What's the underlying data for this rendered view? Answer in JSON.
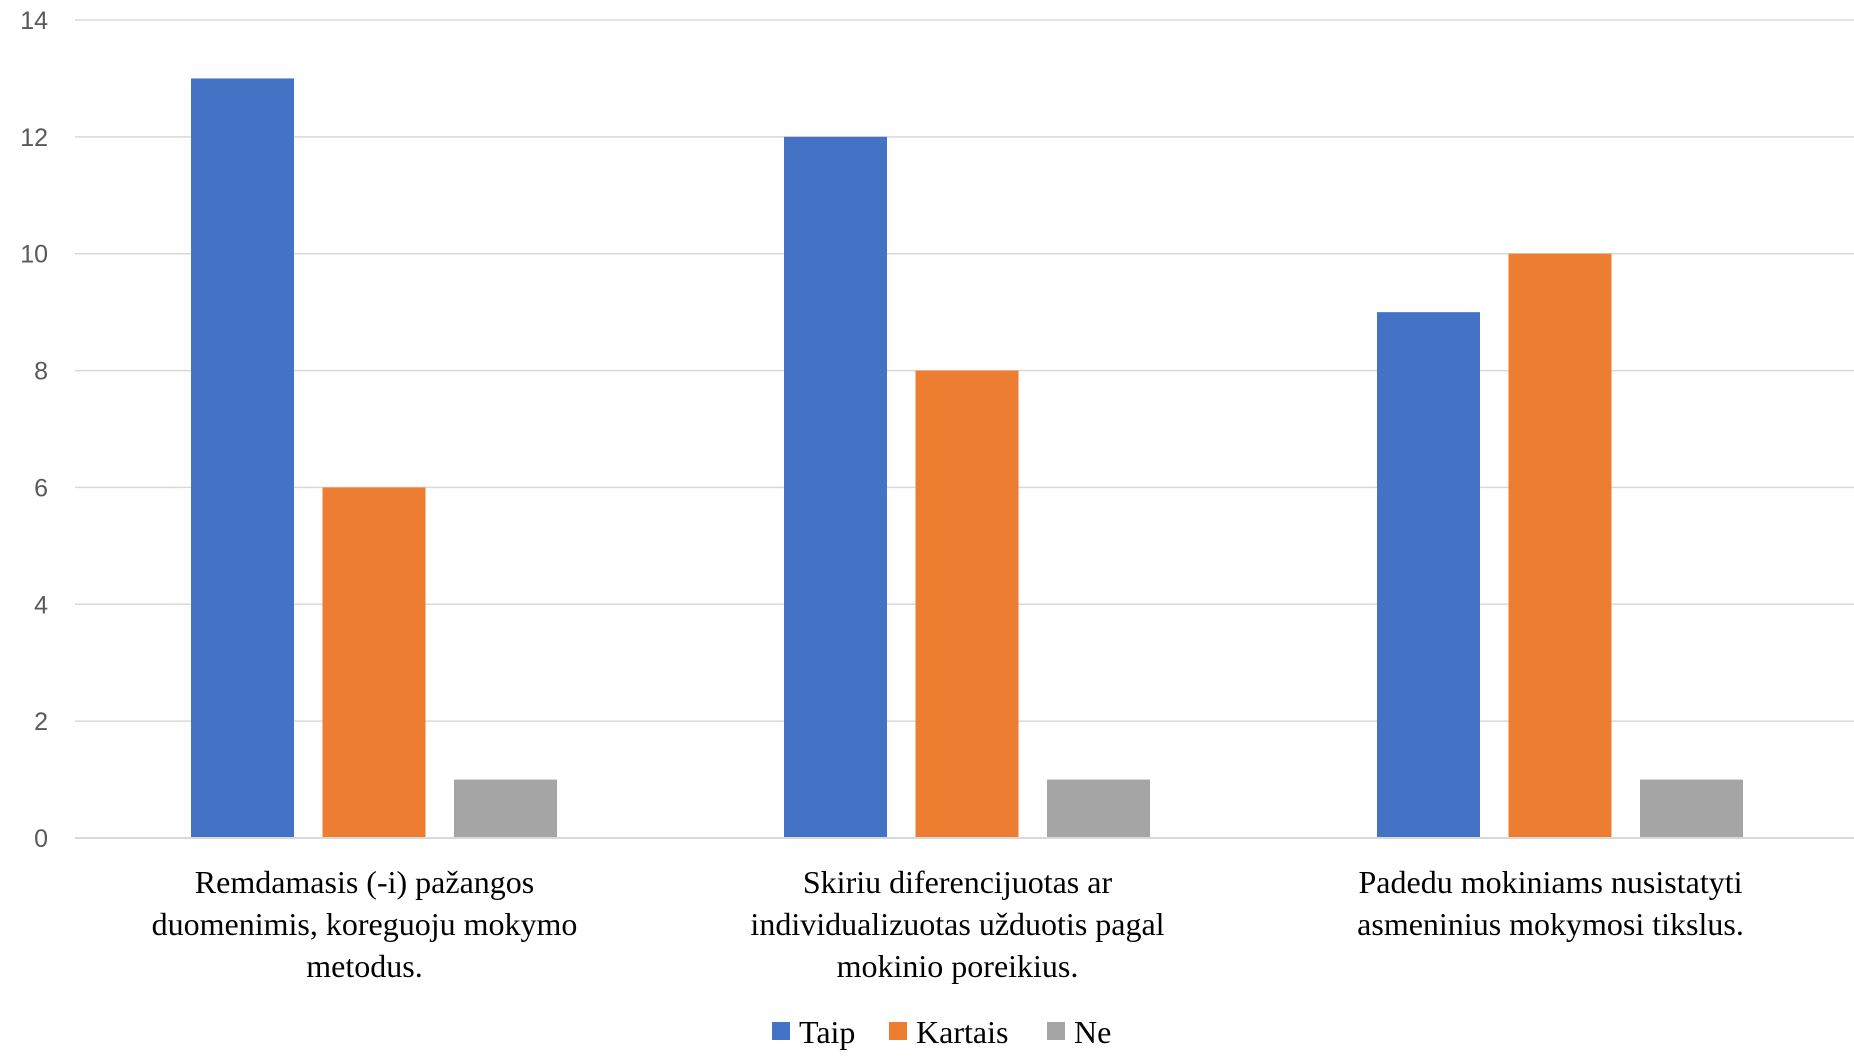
{
  "chart_data": {
    "type": "bar",
    "title": "",
    "xlabel": "",
    "ylabel": "",
    "ylim": [
      0,
      14
    ],
    "yticks": [
      0,
      2,
      4,
      6,
      8,
      10,
      12,
      14
    ],
    "grid": true,
    "legend_position": "bottom",
    "categories": [
      [
        "Remdamasis (-i) pažangos",
        "duomenimis, koreguoju mokymo",
        "metodus."
      ],
      [
        "Skiriu diferencijuotas ar",
        "individualizuotas užduotis pagal",
        "mokinio poreikius."
      ],
      [
        "Padedu mokiniams nusistatyti",
        "asmeninius mokymosi tikslus."
      ]
    ],
    "series": [
      {
        "name": "Taip",
        "color": "#4472c4",
        "values": [
          13,
          12,
          9
        ]
      },
      {
        "name": "Kartais",
        "color": "#ed7d31",
        "values": [
          6,
          8,
          10
        ]
      },
      {
        "name": "Ne",
        "color": "#a5a5a5",
        "values": [
          1,
          1,
          1
        ]
      }
    ]
  }
}
